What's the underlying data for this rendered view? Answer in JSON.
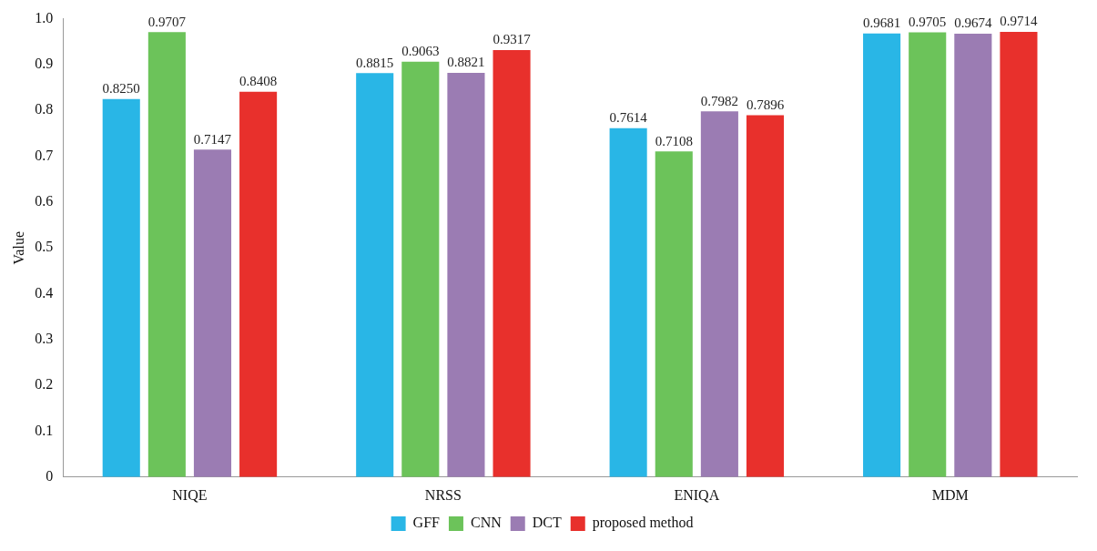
{
  "chart_data": {
    "type": "bar",
    "ylabel": "Value",
    "categories": [
      "NIQE",
      "NRSS",
      "ENIQA",
      "MDM"
    ],
    "series": [
      {
        "name": "GFF",
        "color": "#29b6e6",
        "values": [
          0.825,
          0.8815,
          0.7614,
          0.9681
        ],
        "value_labels": [
          "0.8250",
          "0.8815",
          "0.7614",
          "0.9681"
        ]
      },
      {
        "name": "CNN",
        "color": "#6cc35a",
        "values": [
          0.9707,
          0.9063,
          0.7108,
          0.9705
        ],
        "value_labels": [
          "0.9707",
          "0.9063",
          "0.7108",
          "0.9705"
        ]
      },
      {
        "name": "DCT",
        "color": "#9b7cb3",
        "values": [
          0.7147,
          0.8821,
          0.7982,
          0.9674
        ],
        "value_labels": [
          "0.7147",
          "0.8821",
          "0.7982",
          "0.9674"
        ]
      },
      {
        "name": "proposed method",
        "color": "#e8302c",
        "values": [
          0.8408,
          0.9317,
          0.7896,
          0.9714
        ],
        "value_labels": [
          "0.8408",
          "0.9317",
          "0.7896",
          "0.9714"
        ]
      }
    ],
    "ylim": [
      0,
      1
    ],
    "yticks": [
      0,
      0.1,
      0.2,
      0.3,
      0.4,
      0.5,
      0.6,
      0.7,
      0.8,
      0.9,
      {
        "value": 1,
        "label": "1.0"
      }
    ],
    "grid": false,
    "legend": "bottom"
  }
}
